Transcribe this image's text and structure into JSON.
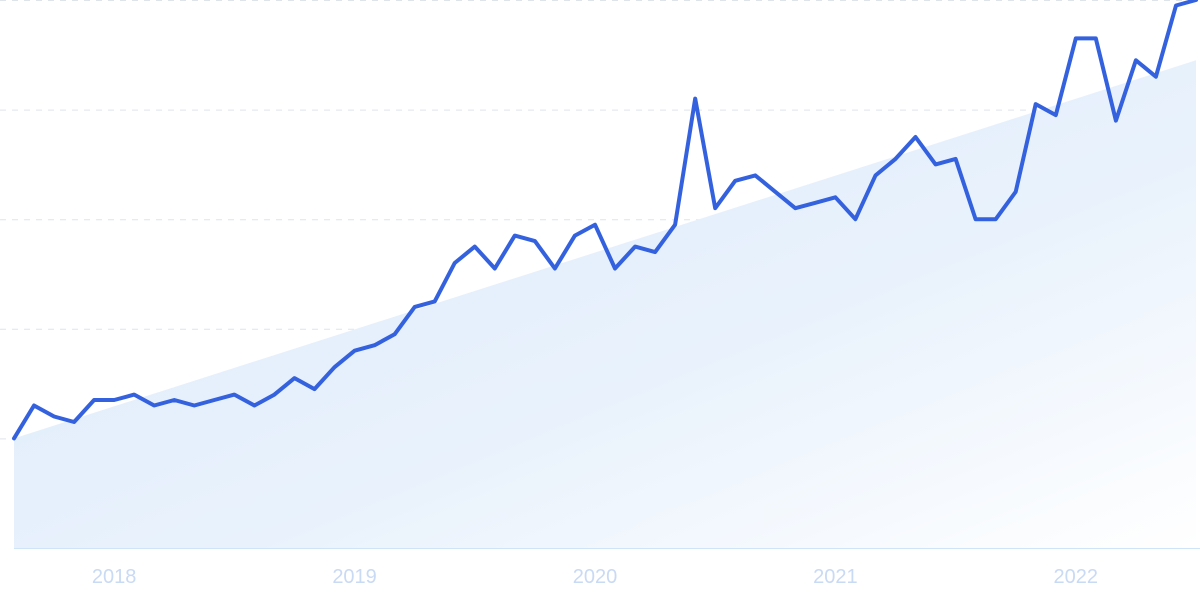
{
  "chart_data": {
    "type": "line",
    "title": "",
    "xlabel": "",
    "ylabel": "",
    "x_ticks": [
      "2018",
      "2019",
      "2020",
      "2021",
      "2022"
    ],
    "x_tick_months": [
      "2018-01",
      "2019-01",
      "2020-01",
      "2021-01",
      "2022-01"
    ],
    "ylim": [
      0,
      100
    ],
    "grid": true,
    "legend": "none",
    "line_color": "#3461dd",
    "fill_color": "#e3effc",
    "trend": {
      "start": {
        "x": "2017-08",
        "y": 20
      },
      "end": {
        "x": "2022-07",
        "y": 89
      }
    },
    "series": [
      {
        "x": [
          "2017-08",
          "2017-09",
          "2017-10",
          "2017-11",
          "2017-12",
          "2018-01",
          "2018-02",
          "2018-03",
          "2018-04",
          "2018-05",
          "2018-06",
          "2018-07",
          "2018-08",
          "2018-09",
          "2018-10",
          "2018-11",
          "2018-12",
          "2019-01",
          "2019-02",
          "2019-03",
          "2019-04",
          "2019-05",
          "2019-06",
          "2019-07",
          "2019-08",
          "2019-09",
          "2019-10",
          "2019-11",
          "2019-12",
          "2020-01",
          "2020-02",
          "2020-03",
          "2020-04",
          "2020-05",
          "2020-06",
          "2020-07",
          "2020-08",
          "2020-09",
          "2020-10",
          "2020-11",
          "2020-12",
          "2021-01",
          "2021-02",
          "2021-03",
          "2021-04",
          "2021-05",
          "2021-06",
          "2021-07",
          "2021-08",
          "2021-09",
          "2021-10",
          "2021-11",
          "2021-12",
          "2022-01",
          "2022-02",
          "2022-03",
          "2022-04",
          "2022-05",
          "2022-06",
          "2022-07"
        ],
        "values": [
          20,
          26,
          24,
          23,
          27,
          27,
          28,
          26,
          27,
          26,
          27,
          28,
          26,
          28,
          31,
          29,
          33,
          36,
          37,
          39,
          44,
          45,
          52,
          55,
          51,
          57,
          56,
          51,
          57,
          59,
          51,
          55,
          54,
          59,
          82,
          62,
          67,
          68,
          65,
          62,
          63,
          64,
          60,
          68,
          71,
          75,
          70,
          71,
          60,
          60,
          65,
          81,
          79,
          93,
          93,
          78,
          89,
          86,
          99,
          100
        ]
      }
    ]
  }
}
